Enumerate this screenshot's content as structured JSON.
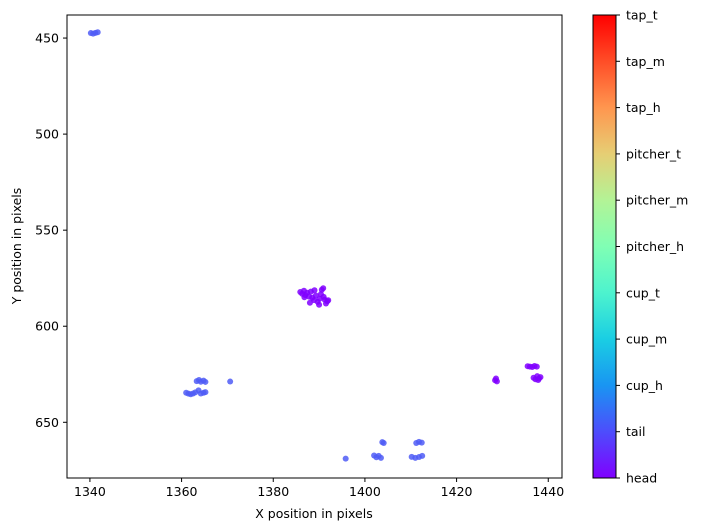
{
  "chart_data": {
    "type": "scatter",
    "title": "",
    "xlabel": "X position in pixels",
    "ylabel": "Y position in pixels",
    "xlim": [
      1335,
      1443
    ],
    "ylim": [
      679,
      438
    ],
    "y_inverted": true,
    "grid": false,
    "xticks": [
      1340,
      1360,
      1380,
      1400,
      1420,
      1440
    ],
    "yticks": [
      450,
      500,
      550,
      600,
      650
    ],
    "colorbar": {
      "colormap": "rainbow",
      "labels": [
        "head",
        "tail",
        "cup_h",
        "cup_m",
        "cup_t",
        "pitcher_h",
        "pitcher_m",
        "pitcher_t",
        "tap_h",
        "tap_m",
        "tap_t"
      ]
    },
    "series": [
      {
        "label": "head",
        "color": "#8000ff",
        "points": [
          [
            1385.9,
            582.2
          ],
          [
            1386.3,
            583.1
          ],
          [
            1386.7,
            581.5
          ],
          [
            1387.0,
            583.8
          ],
          [
            1387.4,
            582.6
          ],
          [
            1387.8,
            584.6
          ],
          [
            1388.2,
            582.0
          ],
          [
            1388.5,
            585.2
          ],
          [
            1388.9,
            586.4
          ],
          [
            1389.3,
            584.0
          ],
          [
            1389.7,
            587.3
          ],
          [
            1390.1,
            585.7
          ],
          [
            1390.4,
            583.3
          ],
          [
            1390.6,
            581.0
          ],
          [
            1390.9,
            580.2
          ],
          [
            1391.2,
            586.1
          ],
          [
            1391.5,
            588.2
          ],
          [
            1391.8,
            587.0
          ],
          [
            1392.0,
            586.5
          ],
          [
            1390.0,
            588.8
          ],
          [
            1388.0,
            587.8
          ],
          [
            1386.8,
            584.9
          ],
          [
            1389.0,
            581.3
          ],
          [
            1391.0,
            584.7
          ],
          [
            1428.4,
            628.1
          ],
          [
            1428.6,
            627.2
          ],
          [
            1428.8,
            628.7
          ],
          [
            1435.5,
            620.8
          ],
          [
            1436.0,
            621.0
          ],
          [
            1436.5,
            621.2
          ],
          [
            1437.0,
            620.7
          ],
          [
            1437.5,
            621.0
          ],
          [
            1436.8,
            626.8
          ],
          [
            1437.2,
            627.6
          ],
          [
            1437.6,
            626.0
          ],
          [
            1438.0,
            627.2
          ],
          [
            1438.3,
            626.5
          ],
          [
            1437.8,
            628.0
          ]
        ]
      },
      {
        "label": "tail",
        "color": "#4f5cf6",
        "points": [
          [
            1340.2,
            447.4
          ],
          [
            1340.7,
            447.7
          ],
          [
            1341.2,
            447.3
          ],
          [
            1341.7,
            447.0
          ],
          [
            1361.0,
            634.6
          ],
          [
            1361.5,
            635.1
          ],
          [
            1362.0,
            635.4
          ],
          [
            1362.5,
            635.0
          ],
          [
            1363.0,
            634.4
          ],
          [
            1363.3,
            628.6
          ],
          [
            1363.8,
            628.0
          ],
          [
            1364.2,
            628.9
          ],
          [
            1364.8,
            628.3
          ],
          [
            1365.2,
            629.0
          ],
          [
            1363.7,
            633.4
          ],
          [
            1364.2,
            635.0
          ],
          [
            1364.8,
            634.6
          ],
          [
            1365.2,
            634.3
          ],
          [
            1370.6,
            628.8
          ],
          [
            1395.8,
            668.9
          ],
          [
            1402.0,
            667.3
          ],
          [
            1402.5,
            668.2
          ],
          [
            1403.0,
            667.5
          ],
          [
            1403.5,
            668.5
          ],
          [
            1403.8,
            660.3
          ],
          [
            1404.1,
            660.8
          ],
          [
            1410.2,
            668.0
          ],
          [
            1411.0,
            668.5
          ],
          [
            1411.8,
            668.1
          ],
          [
            1412.5,
            667.5
          ],
          [
            1411.2,
            660.8
          ],
          [
            1411.8,
            660.2
          ],
          [
            1412.4,
            660.6
          ]
        ]
      }
    ]
  }
}
